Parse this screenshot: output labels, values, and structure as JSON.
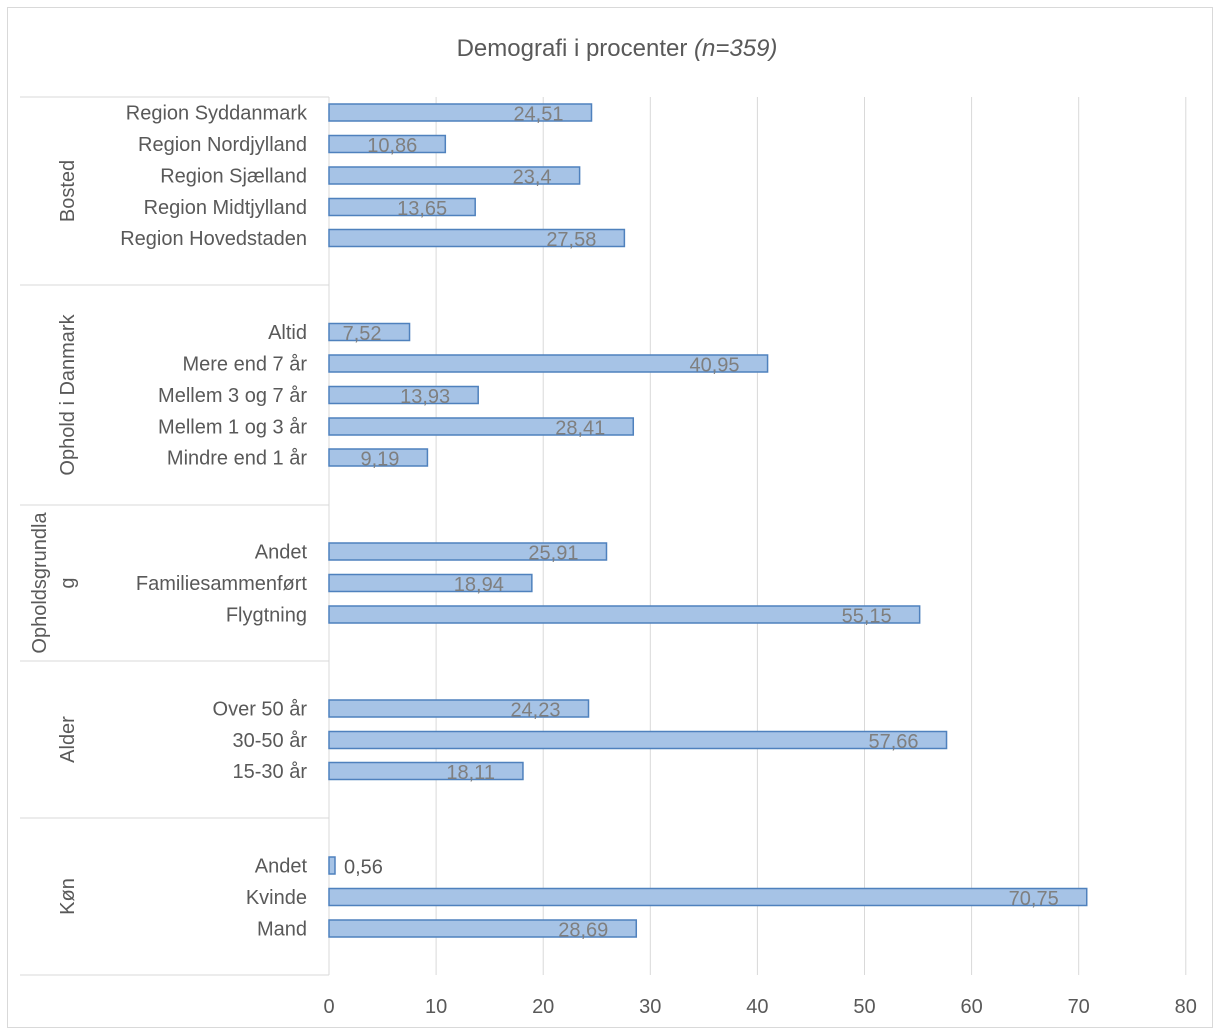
{
  "chart_data": {
    "type": "bar",
    "orientation": "horizontal",
    "title": "Demografi i procenter ",
    "title_italic": "(n=359)",
    "xlim": [
      0,
      80
    ],
    "xticks": [
      0,
      10,
      20,
      30,
      40,
      50,
      60,
      70,
      80
    ],
    "grid": true,
    "legend": "none",
    "bar_color": "#a6c3e6",
    "bar_edge_color": "#4f81bd",
    "groups": [
      {
        "name": "Bosted",
        "categories": [
          "Region Syddanmark",
          "Region Nordjylland",
          "Region Sjælland",
          "Region Midtjylland",
          "Region Hovedstaden"
        ],
        "values": [
          24.51,
          10.86,
          23.4,
          13.65,
          27.58
        ],
        "labels": [
          "24,51",
          "10,86",
          "23,4",
          "13,65",
          "27,58"
        ]
      },
      {
        "name": "Ophold i Danmark",
        "categories": [
          "Altid",
          "Mere end 7 år",
          "Mellem 3 og 7 år",
          "Mellem 1 og 3 år",
          "Mindre end 1 år"
        ],
        "values": [
          7.52,
          40.95,
          13.93,
          28.41,
          9.19
        ],
        "labels": [
          "7,52",
          "40,95",
          "13,93",
          "28,41",
          "9,19"
        ]
      },
      {
        "name_lines": [
          "Opholdsgrundla",
          "g"
        ],
        "categories": [
          "Andet",
          "Familiesammenført",
          "Flygtning"
        ],
        "values": [
          25.91,
          18.94,
          55.15
        ],
        "labels": [
          "25,91",
          "18,94",
          "55,15"
        ]
      },
      {
        "name": "Alder",
        "categories": [
          "Over 50 år",
          "30-50 år",
          "15-30 år"
        ],
        "values": [
          24.23,
          57.66,
          18.11
        ],
        "labels": [
          "24,23",
          "57,66",
          "18,11"
        ]
      },
      {
        "name": "Køn",
        "categories": [
          "Andet",
          "Kvinde",
          "Mand"
        ],
        "values": [
          0.56,
          70.75,
          28.69
        ],
        "labels": [
          "0,56",
          "70,75",
          "28,69"
        ]
      }
    ]
  }
}
